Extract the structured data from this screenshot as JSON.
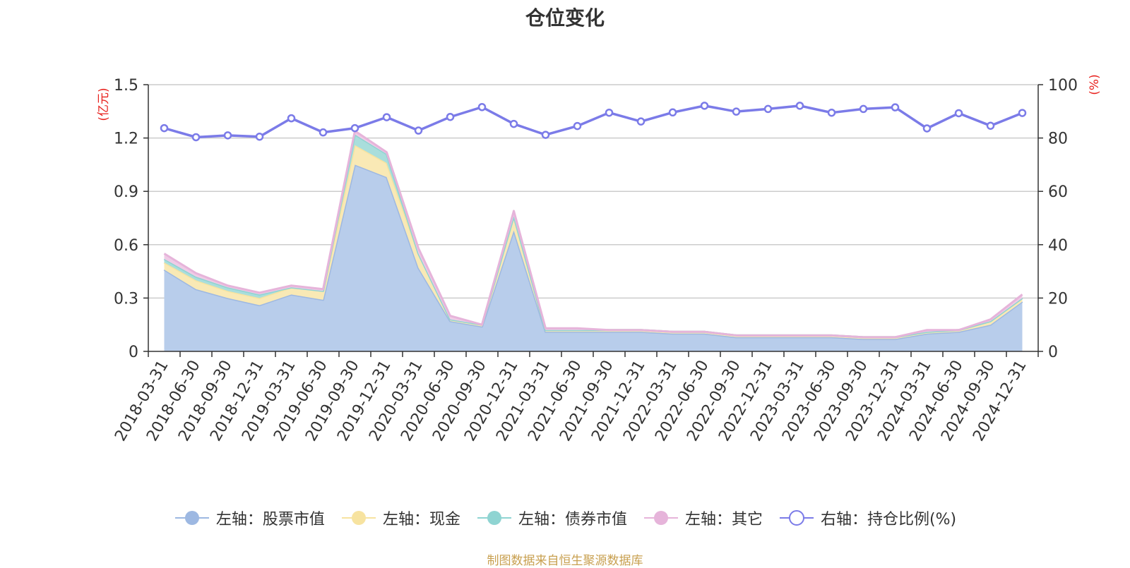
{
  "chart_data": {
    "type": "area",
    "title": "仓位变化",
    "categories": [
      "2018-03-31",
      "2018-06-30",
      "2018-09-30",
      "2018-12-31",
      "2019-03-31",
      "2019-06-30",
      "2019-09-30",
      "2019-12-31",
      "2020-03-31",
      "2020-06-30",
      "2020-09-30",
      "2020-12-31",
      "2021-03-31",
      "2021-06-30",
      "2021-09-30",
      "2021-12-31",
      "2022-03-31",
      "2022-06-30",
      "2022-09-30",
      "2022-12-31",
      "2023-03-31",
      "2023-06-30",
      "2023-09-30",
      "2023-12-31",
      "2024-03-31",
      "2024-06-30",
      "2024-09-30",
      "2024-12-31"
    ],
    "left_axis": {
      "unit_label": "(亿元)",
      "ylim": [
        0,
        1.5
      ],
      "ticks": [
        "0",
        "0.3",
        "0.6",
        "0.9",
        "1.2",
        "1.5"
      ],
      "tick_values": [
        0,
        0.3,
        0.6,
        0.9,
        1.2,
        1.5
      ]
    },
    "right_axis": {
      "unit_label": "(%)",
      "ylim": [
        0,
        100
      ],
      "ticks": [
        "0",
        "20",
        "40",
        "60",
        "80",
        "100"
      ],
      "tick_values": [
        0,
        20,
        40,
        60,
        80,
        100
      ]
    },
    "stacked_series": [
      {
        "name": "左轴：股票市值",
        "color": "#9db8e2",
        "fill": "#b8cdeb",
        "values": [
          0.46,
          0.35,
          0.3,
          0.26,
          0.32,
          0.29,
          1.05,
          0.98,
          0.47,
          0.17,
          0.14,
          0.68,
          0.11,
          0.11,
          0.11,
          0.11,
          0.1,
          0.1,
          0.08,
          0.08,
          0.08,
          0.08,
          0.07,
          0.07,
          0.1,
          0.11,
          0.15,
          0.28
        ]
      },
      {
        "name": "左轴：现金",
        "color": "#f7e3a0",
        "fill": "#f9e9b5",
        "values": [
          0.04,
          0.05,
          0.04,
          0.04,
          0.04,
          0.05,
          0.11,
          0.08,
          0.08,
          0.01,
          0.01,
          0.08,
          0.01,
          0.01,
          0.01,
          0.01,
          0.01,
          0.01,
          0.01,
          0.01,
          0.01,
          0.01,
          0.01,
          0.01,
          0.01,
          0.01,
          0.02,
          0.02
        ]
      },
      {
        "name": "左轴：债券市值",
        "color": "#8fd4d2",
        "fill": "#a9dedc",
        "values": [
          0.02,
          0.02,
          0.02,
          0.02,
          0.0,
          0.0,
          0.06,
          0.05,
          0.0,
          0.0,
          0.0,
          0.0,
          0.0,
          0.0,
          0.0,
          0.0,
          0.0,
          0.0,
          0.0,
          0.0,
          0.0,
          0.0,
          0.0,
          0.0,
          0.0,
          0.0,
          0.0,
          0.0
        ]
      },
      {
        "name": "左轴：其它",
        "color": "#e6b4da",
        "fill": "#efcbe6",
        "values": [
          0.03,
          0.02,
          0.01,
          0.01,
          0.01,
          0.01,
          0.02,
          0.01,
          0.03,
          0.02,
          0.0,
          0.03,
          0.01,
          0.01,
          0.0,
          0.0,
          0.0,
          0.0,
          0.0,
          0.0,
          0.0,
          0.0,
          0.0,
          0.0,
          0.01,
          0.0,
          0.01,
          0.02
        ]
      }
    ],
    "line_series": {
      "name": "右轴：持仓比例(%)",
      "color": "#7b7be8",
      "values": [
        83.7,
        80.3,
        81.0,
        80.5,
        87.4,
        82.1,
        83.7,
        87.8,
        82.8,
        87.9,
        91.6,
        85.3,
        81.2,
        84.5,
        89.5,
        86.2,
        89.6,
        92.1,
        89.9,
        90.9,
        92.1,
        89.5,
        90.9,
        91.5,
        83.6,
        89.3,
        84.6,
        89.4
      ]
    },
    "grid": true,
    "legend_position": "bottom"
  },
  "source_note": {
    "text": "制图数据来自恒生聚源数据库",
    "color": "#c8a050"
  },
  "colors": {
    "axis": "#333333",
    "grid": "#cccccc",
    "unit_label": "#e8201c"
  }
}
